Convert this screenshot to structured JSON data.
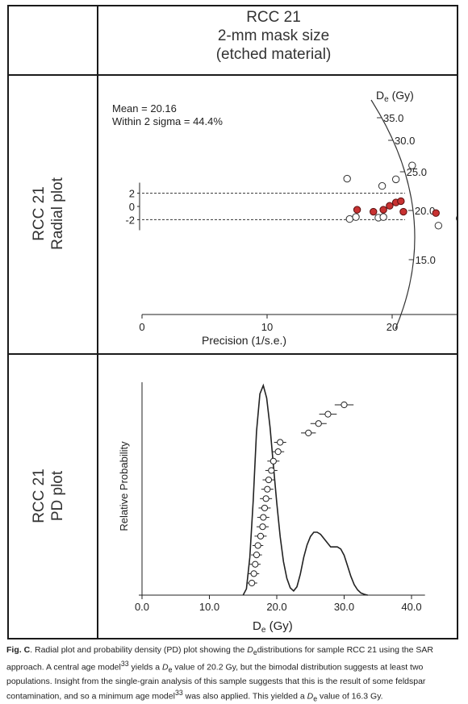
{
  "header": {
    "line1": "RCC 21",
    "line2": "2-mm mask size",
    "line3": "(etched material)"
  },
  "row_labels": {
    "radial_line1": "RCC 21",
    "radial_line2": "Radial plot",
    "pd_line1": "RCC 21",
    "pd_line2": "PD plot"
  },
  "chart_data": [
    {
      "type": "scatter",
      "name": "radial-plot",
      "title": "",
      "xlabel": "Precision (1/s.e.)",
      "ylabel": "",
      "xlim": [
        0,
        27
      ],
      "xticks": [
        0,
        10,
        20
      ],
      "annotations": {
        "mean": "Mean = 20.16",
        "sigma": "Within 2 sigma = 44.4%",
        "de_label": "D",
        "de_sub": "e",
        "de_unit": " (Gy)"
      },
      "y_axis_ticks": [
        "2",
        "0",
        "-2"
      ],
      "arc_ticks": [
        {
          "label": "35.0",
          "value": 35.0
        },
        {
          "label": "30.0",
          "value": 30.0
        },
        {
          "label": "25.0",
          "value": 25.0
        },
        {
          "label": "20.0",
          "value": 20.0
        },
        {
          "label": "15.0",
          "value": 15.0
        }
      ],
      "band": [
        -2,
        2
      ],
      "points_open": [
        {
          "x": 16.4,
          "y": 4.2
        },
        {
          "x": 16.6,
          "y": -1.9
        },
        {
          "x": 17.1,
          "y": -1.6
        },
        {
          "x": 18.9,
          "y": -1.7
        },
        {
          "x": 19.3,
          "y": -1.6
        },
        {
          "x": 19.2,
          "y": 3.1
        },
        {
          "x": 20.3,
          "y": 4.1
        },
        {
          "x": 21.6,
          "y": 6.2
        },
        {
          "x": 23.7,
          "y": -2.9
        },
        {
          "x": 25.4,
          "y": -1.8
        }
      ],
      "points_filled": [
        {
          "x": 17.2,
          "y": -0.5
        },
        {
          "x": 18.5,
          "y": -0.8
        },
        {
          "x": 19.3,
          "y": -0.5
        },
        {
          "x": 19.8,
          "y": 0.1
        },
        {
          "x": 20.3,
          "y": 0.6
        },
        {
          "x": 20.7,
          "y": 0.8
        },
        {
          "x": 20.9,
          "y": -0.8
        },
        {
          "x": 23.5,
          "y": -1.0
        }
      ],
      "open_color": "#ffffff",
      "filled_color": "#c83232"
    },
    {
      "type": "line",
      "name": "pd-plot",
      "title": "",
      "xlabel_main": "D",
      "xlabel_sub": "e",
      "xlabel_unit": " (Gy)",
      "ylabel": "Relative Probability",
      "xlim": [
        0,
        42
      ],
      "xticks": [
        {
          "label": "0.0",
          "value": 0
        },
        {
          "label": "10.0",
          "value": 10
        },
        {
          "label": "20.0",
          "value": 20
        },
        {
          "label": "30.0",
          "value": 30
        },
        {
          "label": "40.0",
          "value": 40
        }
      ],
      "curve": {
        "x": [
          15.0,
          15.5,
          16.0,
          16.5,
          17.0,
          17.5,
          18.0,
          18.5,
          19.0,
          19.5,
          20.0,
          20.5,
          21.0,
          21.5,
          22.0,
          22.5,
          23.0,
          23.5,
          24.0,
          24.5,
          25.0,
          25.5,
          26.0,
          26.5,
          27.0,
          27.5,
          28.0,
          28.5,
          29.0,
          29.5,
          30.0,
          30.5,
          31.0,
          31.5,
          32.0,
          32.5,
          33.0,
          33.5
        ],
        "y": [
          0.0,
          0.03,
          0.18,
          0.45,
          0.78,
          0.96,
          1.0,
          0.94,
          0.8,
          0.62,
          0.44,
          0.28,
          0.16,
          0.08,
          0.035,
          0.02,
          0.04,
          0.1,
          0.18,
          0.24,
          0.28,
          0.3,
          0.3,
          0.29,
          0.27,
          0.25,
          0.23,
          0.23,
          0.23,
          0.22,
          0.19,
          0.14,
          0.09,
          0.05,
          0.025,
          0.01,
          0.004,
          0.0
        ]
      },
      "estimates": [
        {
          "de": 16.3,
          "err": 0.8
        },
        {
          "de": 16.6,
          "err": 0.8
        },
        {
          "de": 16.8,
          "err": 0.8
        },
        {
          "de": 17.0,
          "err": 0.8
        },
        {
          "de": 17.2,
          "err": 0.8
        },
        {
          "de": 17.6,
          "err": 0.9
        },
        {
          "de": 17.9,
          "err": 0.9
        },
        {
          "de": 18.0,
          "err": 0.9
        },
        {
          "de": 18.2,
          "err": 0.9
        },
        {
          "de": 18.4,
          "err": 0.9
        },
        {
          "de": 18.6,
          "err": 0.9
        },
        {
          "de": 18.8,
          "err": 0.9
        },
        {
          "de": 19.2,
          "err": 0.9
        },
        {
          "de": 19.5,
          "err": 0.9
        },
        {
          "de": 20.2,
          "err": 0.9
        },
        {
          "de": 20.5,
          "err": 0.9
        },
        {
          "de": 24.7,
          "err": 1.1
        },
        {
          "de": 26.2,
          "err": 1.2
        },
        {
          "de": 27.6,
          "err": 1.3
        },
        {
          "de": 30.0,
          "err": 1.4
        }
      ]
    }
  ],
  "caption": {
    "fig": "Fig. C",
    "t1": ". Radial plot and probability density (PD) plot showing the ",
    "de": "D",
    "de_sub": "e",
    "t2": "distributions for sample RCC 21 using the SAR approach.  A central age model",
    "ref1": "33",
    "t3": " yields a ",
    "t4": " value  of  20.2  Gy,  but the bimodal distribution suggests at least two populations. Insight from   the single-grain analysis of this sample suggests that this is the result of some feldspar contamination, and so a minimum age model",
    "ref2": "33",
    "t5": "  was also applied. This yielded a ",
    "t6": " value of 16.3 Gy."
  }
}
